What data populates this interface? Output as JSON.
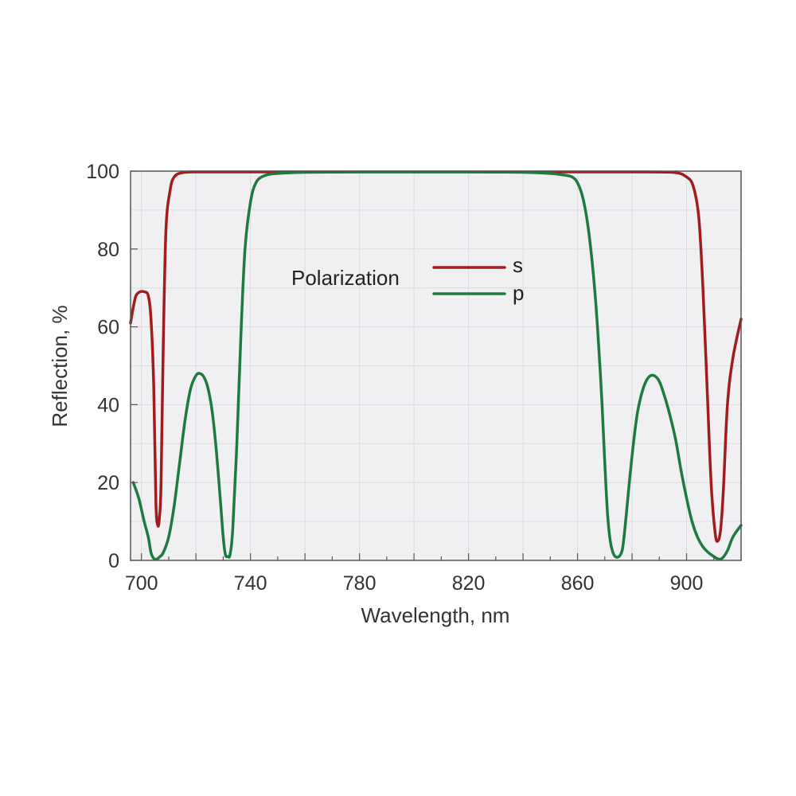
{
  "chart_data": {
    "type": "line",
    "xlabel": "Wavelength, nm",
    "ylabel": "Reflection, %",
    "xlim": [
      696,
      920
    ],
    "ylim": [
      0,
      100
    ],
    "x_ticks": [
      700,
      740,
      780,
      820,
      860,
      900
    ],
    "y_ticks": [
      0,
      20,
      40,
      60,
      80,
      100
    ],
    "x_minor_step": 20,
    "y_grid_step": 10,
    "grid": true,
    "legend": {
      "title": "Polarization",
      "position": "upper-center"
    },
    "series": [
      {
        "name": "s",
        "color": "#a01c1f",
        "x": [
          696,
          697,
          698,
          699.5,
          701,
          702.5,
          703.5,
          704.5,
          705.3,
          706,
          706.6,
          707.2,
          708,
          709,
          710.5,
          712,
          715,
          720,
          730,
          760,
          800,
          850,
          880,
          895,
          900,
          902.5,
          904.5,
          906,
          907.5,
          909,
          910.5,
          911.5,
          912.5,
          913.5,
          915,
          917,
          920
        ],
        "y": [
          61,
          65,
          68,
          69,
          69,
          68,
          62,
          45,
          15,
          9,
          11,
          20,
          55,
          85,
          95,
          98.5,
          99.6,
          99.8,
          99.8,
          99.8,
          99.8,
          99.8,
          99.8,
          99.7,
          98.5,
          96,
          88,
          70,
          45,
          20,
          7,
          5,
          8,
          18,
          40,
          52,
          62
        ]
      },
      {
        "name": "p",
        "color": "#1d7a40",
        "x": [
          697,
          699,
          701,
          702.5,
          703.5,
          704.5,
          705.5,
          706.5,
          708,
          710,
          712,
          714,
          716,
          718,
          720,
          721.5,
          723,
          724.5,
          726,
          727.5,
          729,
          730,
          730.8,
          731.7,
          732.5,
          733.5,
          735,
          736.5,
          738,
          740,
          742,
          745,
          750,
          760,
          780,
          800,
          820,
          840,
          850,
          855,
          858,
          860,
          862,
          864,
          866,
          867.5,
          869,
          870,
          871,
          872,
          873,
          873.8,
          874.6,
          875.5,
          876.5,
          877.5,
          879,
          880.5,
          882,
          884,
          886,
          888,
          890,
          892,
          894,
          896,
          898,
          900,
          902,
          904,
          906,
          908,
          910,
          911.5,
          913,
          915,
          917,
          920
        ],
        "y": [
          20,
          16,
          10,
          6,
          2,
          0.5,
          0.3,
          0.8,
          2,
          6,
          14,
          25,
          36,
          44,
          47.5,
          48,
          47,
          44,
          38,
          28,
          15,
          6,
          1.5,
          1,
          1.5,
          8,
          30,
          58,
          80,
          92,
          97,
          98.8,
          99.4,
          99.7,
          99.8,
          99.8,
          99.8,
          99.7,
          99.4,
          99,
          98.5,
          97,
          93,
          85,
          72,
          58,
          40,
          25,
          12,
          5,
          2,
          1,
          0.8,
          1.2,
          3,
          9,
          20,
          30,
          38,
          44,
          47,
          47.5,
          46,
          42,
          37,
          31,
          23,
          16,
          10,
          6,
          3.5,
          2,
          1,
          0.4,
          0.5,
          2.5,
          6,
          9
        ]
      }
    ]
  }
}
